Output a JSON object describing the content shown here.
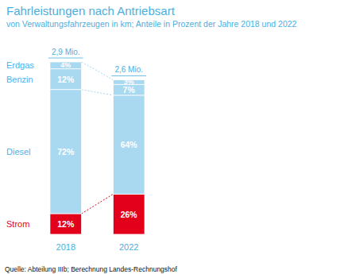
{
  "chart_data": {
    "type": "bar",
    "stacked": true,
    "data_labels": true,
    "tick_labels": "x",
    "legend": "left",
    "title": "Fahrleistungen nach Antriebsart",
    "subtitle": "von Verwaltungsfahrzeugen in km; Anteile in Prozent der Jahre 2018 und 2022",
    "source": "Quelle: Abteilung IIIb; Berechnung Landes-Rechnungshof",
    "categories": [
      "2018",
      "2022"
    ],
    "totals": [
      2.9,
      2.6
    ],
    "total_labels": [
      "2,9 Mio.",
      "2,6 Mio."
    ],
    "series": [
      {
        "name": "Strom",
        "color": "#e2001a",
        "values": [
          12,
          26
        ],
        "value_labels": [
          "12%",
          "26%"
        ]
      },
      {
        "name": "Diesel",
        "color": "#a9d8f1",
        "values": [
          72,
          64
        ],
        "value_labels": [
          "72%",
          "64%"
        ]
      },
      {
        "name": "Benzin",
        "color": "#a9d8f1",
        "values": [
          12,
          7
        ],
        "value_labels": [
          "12%",
          "7%"
        ]
      },
      {
        "name": "Erdgas",
        "color": "#a9d8f1",
        "values": [
          4,
          3
        ],
        "value_labels": [
          "4%",
          "3%"
        ]
      }
    ]
  }
}
